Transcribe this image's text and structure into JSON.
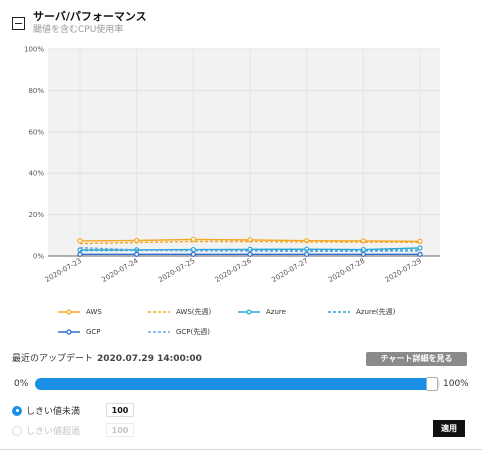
{
  "header": {
    "title": "サーバ/パフォーマンス",
    "subtitle": "閾値を含むCPU使用率"
  },
  "chart_data": {
    "type": "line",
    "categories": [
      "2020-07-23",
      "2020-07-24",
      "2020-07-25",
      "2020-07-26",
      "2020-07-27",
      "2020-07-28",
      "2020-07-29"
    ],
    "y_ticks": [
      "0%",
      "20%",
      "40%",
      "60%",
      "80%",
      "100%"
    ],
    "ylim": [
      0,
      100
    ],
    "grid": true,
    "legend_position": "bottom",
    "series": [
      {
        "name": "AWS",
        "color": "#f5a623",
        "dashed": false,
        "markers": true,
        "values": [
          7.3,
          7.5,
          8.0,
          7.8,
          7.4,
          7.3,
          7.1
        ]
      },
      {
        "name": "AWS(先週)",
        "color": "#f5a623",
        "dashed": true,
        "markers": false,
        "values": [
          6.0,
          6.5,
          7.0,
          7.0,
          6.8,
          6.7,
          6.6
        ]
      },
      {
        "name": "Azure",
        "color": "#29a8d6",
        "dashed": false,
        "markers": true,
        "values": [
          2.9,
          3.0,
          3.1,
          3.2,
          3.3,
          3.1,
          3.9
        ]
      },
      {
        "name": "Azure(先週)",
        "color": "#29a8d6",
        "dashed": true,
        "markers": false,
        "values": [
          2.6,
          2.7,
          2.7,
          2.8,
          2.8,
          2.8,
          2.9
        ]
      },
      {
        "name": "GCP",
        "color": "#2b6fd6",
        "dashed": false,
        "markers": true,
        "values": [
          0.8,
          0.8,
          0.8,
          0.8,
          0.8,
          0.8,
          0.8
        ]
      },
      {
        "name": "GCP(先週)",
        "color": "#6aa9e6",
        "dashed": true,
        "markers": false,
        "values": [
          4.0,
          3.0,
          2.5,
          2.4,
          2.2,
          2.3,
          2.4
        ]
      }
    ]
  },
  "update": {
    "label": "最近のアップデート",
    "timestamp": "2020.07.29 14:00:00"
  },
  "detail_button": "チャート詳細を見る",
  "threshold": {
    "min_label": "0%",
    "max_label": "100%",
    "level": 0.98,
    "below": {
      "label": "しきい値未満",
      "value": "100",
      "selected": true
    },
    "above": {
      "label": "しきい値超過",
      "value": "100",
      "selected": false
    }
  },
  "apply_button": "適用",
  "colors": {
    "accent": "#1a8fe6",
    "button_gray": "#8a8a8a",
    "button_dark": "#111111"
  }
}
